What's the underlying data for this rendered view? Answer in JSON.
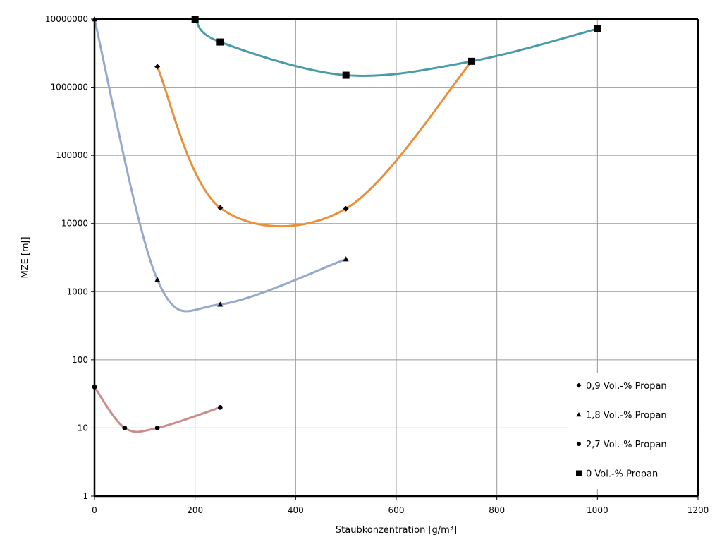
{
  "chart_data": {
    "type": "line",
    "title": "",
    "xlabel": "Staubkonzentration  [g/m³]",
    "ylabel": "MZE [mJ]",
    "xlim": [
      0,
      1200
    ],
    "ylim": [
      1,
      10000000
    ],
    "yscale": "log",
    "grid": true,
    "legend_position": "bottom-right",
    "x_ticks": [
      "0",
      "200",
      "400",
      "600",
      "800",
      "1000",
      "1200"
    ],
    "y_ticks": [
      "1",
      "10",
      "100",
      "1000",
      "10000",
      "100000",
      "1000000",
      "10000000"
    ],
    "series": [
      {
        "name": "0,9 Vol.-% Propan",
        "marker": "diamond",
        "color": "#e8913c",
        "x": [
          125,
          250,
          500,
          750
        ],
        "y": [
          2000000,
          17000,
          16500,
          2400000
        ]
      },
      {
        "name": "1,8 Vol.-% Propan",
        "marker": "triangle",
        "color": "#95a9cd",
        "x": [
          0,
          125,
          250,
          500
        ],
        "y": [
          10000000,
          1500,
          650,
          3000
        ]
      },
      {
        "name": "2,7 Vol.-% Propan",
        "marker": "circle",
        "color": "#cc8c8a",
        "x": [
          0,
          60,
          125,
          250
        ],
        "y": [
          40,
          10,
          10,
          20
        ]
      },
      {
        "name": "0 Vol.-% Propan",
        "marker": "square",
        "color": "#4a9ba9",
        "x": [
          200,
          250,
          500,
          750,
          1000
        ],
        "y": [
          10000000,
          4600000,
          1500000,
          2400000,
          7200000
        ]
      }
    ]
  }
}
